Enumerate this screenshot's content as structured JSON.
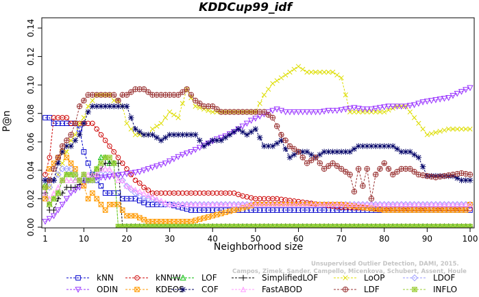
{
  "chart_data": {
    "type": "line",
    "title": "KDDCup99_idf",
    "xlabel": "Neighborhood size",
    "ylabel": "P@n",
    "xlim": [
      1,
      100
    ],
    "ylim": [
      0,
      0.14
    ],
    "xticks": [
      1,
      10,
      20,
      30,
      40,
      50,
      60,
      70,
      80,
      90,
      100
    ],
    "yticks": [
      0.0,
      0.02,
      0.04,
      0.06,
      0.08,
      0.1,
      0.12,
      0.14
    ],
    "grid": false,
    "legend_placement": "bottom",
    "series": [
      {
        "name": "kNN",
        "color": "#0000cc",
        "marker": "square",
        "x": [
          1,
          2,
          3,
          4,
          5,
          6,
          7,
          8,
          9,
          10,
          11,
          12,
          13,
          14,
          15,
          16,
          17,
          18,
          19,
          20,
          22,
          25,
          30,
          35,
          40,
          50,
          60,
          70,
          80,
          90,
          100
        ],
        "y": [
          0.077,
          0.077,
          0.073,
          0.073,
          0.073,
          0.073,
          0.073,
          0.073,
          0.069,
          0.053,
          0.045,
          0.037,
          0.033,
          0.029,
          0.024,
          0.024,
          0.024,
          0.024,
          0.02,
          0.02,
          0.02,
          0.016,
          0.016,
          0.012,
          0.012,
          0.012,
          0.012,
          0.012,
          0.012,
          0.012,
          0.012
        ]
      },
      {
        "name": "kNNW",
        "color": "#cc0000",
        "marker": "circle",
        "x": [
          1,
          2,
          3,
          4,
          5,
          6,
          7,
          8,
          9,
          10,
          11,
          12,
          13,
          14,
          15,
          16,
          17,
          18,
          19,
          20,
          21,
          22,
          23,
          24,
          25,
          26,
          27,
          28,
          30,
          35,
          40,
          45,
          47,
          50,
          55,
          60,
          70,
          80,
          90,
          100
        ],
        "y": [
          0.037,
          0.049,
          0.077,
          0.077,
          0.077,
          0.077,
          0.073,
          0.073,
          0.073,
          0.073,
          0.073,
          0.073,
          0.069,
          0.065,
          0.061,
          0.057,
          0.053,
          0.049,
          0.045,
          0.041,
          0.037,
          0.033,
          0.031,
          0.028,
          0.026,
          0.024,
          0.024,
          0.024,
          0.024,
          0.024,
          0.024,
          0.024,
          0.022,
          0.02,
          0.02,
          0.018,
          0.014,
          0.013,
          0.013,
          0.013
        ]
      },
      {
        "name": "LOF",
        "color": "#00bb00",
        "marker": "triangle-up",
        "x": [
          1,
          2,
          3,
          4,
          5,
          6,
          7,
          8,
          9,
          10,
          11,
          12,
          13,
          14,
          15,
          16,
          17,
          18,
          19,
          20,
          30,
          40,
          50,
          60,
          70,
          80,
          90,
          100
        ],
        "y": [
          0.03,
          0.016,
          0.02,
          0.024,
          0.033,
          0.037,
          0.037,
          0.033,
          0.033,
          0.037,
          0.033,
          0.037,
          0.041,
          0.049,
          0.049,
          0.045,
          0.045,
          0.0005,
          0.0005,
          0.0005,
          0.0005,
          0.0005,
          0.0005,
          0.0005,
          0.0005,
          0.0005,
          0.0005,
          0.0005
        ]
      },
      {
        "name": "SimplifiedLOF",
        "color": "#000000",
        "marker": "plus",
        "x": [
          1,
          2,
          3,
          4,
          5,
          6,
          7,
          8,
          9,
          10,
          11,
          12,
          13,
          14,
          15,
          16,
          17,
          18,
          19,
          20,
          30,
          40,
          50,
          60,
          70,
          80,
          90,
          100
        ],
        "y": [
          0.024,
          0.012,
          0.012,
          0.02,
          0.024,
          0.028,
          0.028,
          0.028,
          0.03,
          0.033,
          0.033,
          0.037,
          0.037,
          0.041,
          0.045,
          0.045,
          0.045,
          0.045,
          0.0005,
          0.0005,
          0.0005,
          0.0005,
          0.0005,
          0.0005,
          0.0005,
          0.0005,
          0.0005,
          0.0005
        ]
      },
      {
        "name": "LoOP",
        "color": "#dddd00",
        "marker": "x",
        "x": [
          1,
          2,
          3,
          4,
          5,
          6,
          7,
          8,
          9,
          10,
          11,
          12,
          13,
          14,
          15,
          16,
          17,
          18,
          19,
          20,
          21,
          22,
          23,
          24,
          25,
          26,
          28,
          30,
          32,
          34,
          36,
          40,
          45,
          50,
          52,
          54,
          56,
          58,
          60,
          62,
          65,
          68,
          70,
          72,
          75,
          80,
          83,
          85,
          88,
          90,
          95,
          100
        ],
        "y": [
          0.028,
          0.028,
          0.033,
          0.037,
          0.045,
          0.053,
          0.061,
          0.065,
          0.073,
          0.077,
          0.085,
          0.089,
          0.093,
          0.093,
          0.093,
          0.093,
          0.089,
          0.089,
          0.085,
          0.073,
          0.069,
          0.065,
          0.065,
          0.065,
          0.065,
          0.069,
          0.073,
          0.081,
          0.077,
          0.097,
          0.085,
          0.081,
          0.081,
          0.081,
          0.093,
          0.101,
          0.105,
          0.109,
          0.113,
          0.109,
          0.109,
          0.109,
          0.105,
          0.081,
          0.081,
          0.081,
          0.085,
          0.085,
          0.073,
          0.065,
          0.069,
          0.069
        ]
      },
      {
        "name": "LDOF",
        "color": "#9999ff",
        "marker": "diamond",
        "x": [
          1,
          2,
          3,
          4,
          5,
          6,
          7,
          8,
          9,
          10,
          11,
          12,
          13,
          14,
          15,
          16,
          17,
          18,
          19,
          20,
          22,
          24,
          26,
          28,
          30,
          35,
          40,
          45,
          50,
          55,
          60,
          65,
          70,
          75,
          80,
          85,
          90,
          95,
          100
        ],
        "y": [
          0.033,
          0.028,
          0.033,
          0.037,
          0.041,
          0.041,
          0.041,
          0.037,
          0.033,
          0.033,
          0.033,
          0.033,
          0.033,
          0.037,
          0.037,
          0.037,
          0.037,
          0.037,
          0.033,
          0.029,
          0.024,
          0.02,
          0.02,
          0.016,
          0.016,
          0.016,
          0.016,
          0.016,
          0.016,
          0.016,
          0.016,
          0.016,
          0.016,
          0.016,
          0.016,
          0.016,
          0.016,
          0.016,
          0.016
        ]
      },
      {
        "name": "ODIN",
        "color": "#9933ff",
        "marker": "triangle-down",
        "x": [
          1,
          3,
          5,
          7,
          9,
          11,
          13,
          15,
          17,
          19,
          21,
          23,
          25,
          27,
          29,
          31,
          33,
          35,
          37,
          39,
          41,
          43,
          45,
          47,
          49,
          51,
          53,
          55,
          57,
          59,
          61,
          63,
          65,
          67,
          69,
          71,
          73,
          75,
          77,
          79,
          81,
          83,
          85,
          87,
          89,
          91,
          93,
          95,
          97,
          100
        ],
        "y": [
          0.004,
          0.008,
          0.016,
          0.024,
          0.028,
          0.033,
          0.035,
          0.035,
          0.036,
          0.037,
          0.038,
          0.039,
          0.041,
          0.043,
          0.045,
          0.048,
          0.051,
          0.053,
          0.056,
          0.059,
          0.062,
          0.064,
          0.067,
          0.071,
          0.075,
          0.078,
          0.081,
          0.083,
          0.081,
          0.081,
          0.081,
          0.081,
          0.081,
          0.082,
          0.082,
          0.083,
          0.084,
          0.083,
          0.083,
          0.084,
          0.085,
          0.085,
          0.085,
          0.086,
          0.088,
          0.089,
          0.09,
          0.091,
          0.094,
          0.098
        ]
      },
      {
        "name": "KDEOS",
        "color": "#ff9900",
        "marker": "square-x",
        "x": [
          1,
          2,
          3,
          4,
          5,
          6,
          7,
          8,
          9,
          10,
          11,
          12,
          13,
          14,
          15,
          16,
          17,
          18,
          19,
          20,
          22,
          25,
          30,
          35,
          40,
          45,
          50,
          55,
          60,
          70,
          80,
          90,
          99,
          100
        ],
        "y": [
          0.02,
          0.041,
          0.045,
          0.049,
          0.053,
          0.049,
          0.045,
          0.041,
          0.033,
          0.029,
          0.02,
          0.024,
          0.02,
          0.016,
          0.012,
          0.016,
          0.016,
          0.016,
          0.012,
          0.008,
          0.008,
          0.004,
          0.004,
          0.004,
          0.008,
          0.012,
          0.016,
          0.016,
          0.016,
          0.016,
          0.012,
          0.012,
          0.012,
          0.016
        ]
      },
      {
        "name": "COF",
        "color": "#000066",
        "marker": "asterisk",
        "x": [
          1,
          2,
          3,
          4,
          5,
          6,
          7,
          8,
          9,
          10,
          11,
          12,
          13,
          14,
          15,
          16,
          17,
          18,
          19,
          20,
          22,
          24,
          26,
          28,
          30,
          32,
          34,
          36,
          38,
          40,
          42,
          44,
          46,
          48,
          50,
          52,
          54,
          56,
          58,
          60,
          62,
          64,
          66,
          68,
          70,
          72,
          74,
          76,
          78,
          80,
          82,
          84,
          86,
          88,
          90,
          92,
          94,
          96,
          98,
          100
        ],
        "y": [
          0.033,
          0.033,
          0.033,
          0.045,
          0.053,
          0.057,
          0.057,
          0.061,
          0.065,
          0.073,
          0.081,
          0.085,
          0.085,
          0.085,
          0.085,
          0.085,
          0.085,
          0.085,
          0.085,
          0.085,
          0.069,
          0.065,
          0.065,
          0.061,
          0.065,
          0.065,
          0.065,
          0.065,
          0.057,
          0.061,
          0.061,
          0.065,
          0.069,
          0.065,
          0.069,
          0.057,
          0.057,
          0.061,
          0.049,
          0.053,
          0.053,
          0.049,
          0.053,
          0.053,
          0.053,
          0.053,
          0.057,
          0.057,
          0.057,
          0.057,
          0.057,
          0.053,
          0.053,
          0.049,
          0.036,
          0.036,
          0.036,
          0.036,
          0.033,
          0.033
        ]
      },
      {
        "name": "FastABOD",
        "color": "#ff99ff",
        "marker": "triangle-fill",
        "x": [
          1,
          2,
          3,
          4,
          5,
          6,
          7,
          8,
          9,
          10,
          11,
          12,
          13,
          14,
          15,
          16,
          17,
          18,
          19,
          20,
          30,
          40,
          50,
          60,
          70,
          80,
          90,
          100
        ],
        "y": [
          0.024,
          0.02,
          0.024,
          0.028,
          0.033,
          0.033,
          0.033,
          0.033,
          0.033,
          0.037,
          0.037,
          0.037,
          0.037,
          0.041,
          0.041,
          0.041,
          0.037,
          0.033,
          0.033,
          0.029,
          0.016,
          0.016,
          0.016,
          0.016,
          0.016,
          0.016,
          0.016,
          0.016
        ]
      },
      {
        "name": "LDF",
        "color": "#993333",
        "marker": "circle-plus",
        "x": [
          1,
          2,
          3,
          4,
          5,
          6,
          7,
          8,
          9,
          10,
          11,
          12,
          13,
          14,
          15,
          16,
          17,
          18,
          19,
          20,
          22,
          24,
          26,
          28,
          30,
          32,
          34,
          36,
          38,
          40,
          42,
          44,
          46,
          48,
          50,
          52,
          54,
          56,
          58,
          60,
          62,
          64,
          66,
          68,
          70,
          72,
          73,
          74,
          75,
          76,
          77,
          78,
          80,
          82,
          84,
          86,
          88,
          90,
          92,
          94,
          96,
          98,
          100
        ],
        "y": [
          0.028,
          0.033,
          0.041,
          0.049,
          0.057,
          0.061,
          0.065,
          0.073,
          0.085,
          0.089,
          0.093,
          0.093,
          0.093,
          0.093,
          0.093,
          0.093,
          0.093,
          0.089,
          0.093,
          0.093,
          0.097,
          0.097,
          0.093,
          0.093,
          0.093,
          0.093,
          0.097,
          0.089,
          0.085,
          0.085,
          0.081,
          0.081,
          0.081,
          0.081,
          0.081,
          0.081,
          0.077,
          0.065,
          0.057,
          0.053,
          0.045,
          0.049,
          0.041,
          0.045,
          0.041,
          0.037,
          0.025,
          0.041,
          0.029,
          0.041,
          0.02,
          0.037,
          0.045,
          0.037,
          0.041,
          0.041,
          0.037,
          0.036,
          0.035,
          0.036,
          0.037,
          0.038,
          0.037
        ]
      },
      {
        "name": "INFLO",
        "color": "#99cc33",
        "marker": "square-asterisk",
        "x": [
          1,
          2,
          3,
          4,
          5,
          6,
          7,
          8,
          9,
          10,
          11,
          12,
          13,
          14,
          15,
          16,
          17,
          18,
          19,
          20,
          30,
          40,
          50,
          60,
          70,
          80,
          90,
          100
        ],
        "y": [
          0.028,
          0.016,
          0.02,
          0.024,
          0.033,
          0.037,
          0.037,
          0.037,
          0.033,
          0.037,
          0.033,
          0.033,
          0.041,
          0.045,
          0.049,
          0.049,
          0.045,
          0.0005,
          0.0005,
          0.0005,
          0.0005,
          0.0005,
          0.0005,
          0.0005,
          0.0005,
          0.0005,
          0.0005,
          0.0005
        ]
      }
    ],
    "watermark": [
      "Unsupervised Outlier Detection, DAMI, 2015.",
      "Campos, Zimek, Sander, Campello, Micenkova, Schubert, Assent, Houle"
    ]
  }
}
